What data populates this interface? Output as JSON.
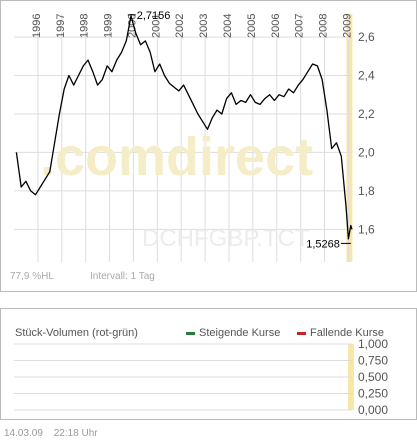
{
  "chart_data": [
    {
      "type": "line",
      "title": "",
      "watermark": ".comdirect",
      "symbol_watermark": "DCHFGBP.TCT",
      "x_labels": [
        "1996",
        "1997",
        "1998",
        "1999",
        "2000",
        "2001",
        "2002",
        "2003",
        "2004",
        "2005",
        "2006",
        "2007",
        "2008",
        "2009"
      ],
      "ylim": [
        1.43,
        2.72
      ],
      "yticks": [
        "2,6",
        "2,4",
        "2,2",
        "2,0",
        "1,8",
        "1,6"
      ],
      "ytick_values": [
        2.6,
        2.4,
        2.2,
        2.0,
        1.8,
        1.6
      ],
      "max_label": "2,7156",
      "max_value": 2.7156,
      "max_year": 1999.93,
      "min_label": "1,5268",
      "min_value": 1.5268,
      "min_year": 2009.02,
      "grid": true,
      "series": [
        {
          "color": "#000000",
          "x": [
            1995.1,
            1995.3,
            1995.5,
            1995.7,
            1995.9,
            1996.1,
            1996.3,
            1996.5,
            1996.7,
            1996.9,
            1997.1,
            1997.3,
            1997.5,
            1997.7,
            1997.9,
            1998.1,
            1998.3,
            1998.5,
            1998.7,
            1998.9,
            1999.1,
            1999.3,
            1999.5,
            1999.7,
            1999.9,
            2000.1,
            2000.3,
            2000.5,
            2000.7,
            2000.9,
            2001.1,
            2001.3,
            2001.5,
            2001.7,
            2001.9,
            2002.1,
            2002.3,
            2002.5,
            2002.7,
            2002.9,
            2003.1,
            2003.3,
            2003.5,
            2003.7,
            2003.9,
            2004.1,
            2004.3,
            2004.5,
            2004.7,
            2004.9,
            2005.1,
            2005.3,
            2005.5,
            2005.7,
            2005.9,
            2006.1,
            2006.3,
            2006.5,
            2006.7,
            2006.9,
            2007.1,
            2007.3,
            2007.5,
            2007.7,
            2007.9,
            2008.1,
            2008.3,
            2008.5,
            2008.7,
            2008.9,
            2009.0,
            2009.1,
            2009.15
          ],
          "values": [
            2.0,
            1.82,
            1.85,
            1.8,
            1.78,
            1.82,
            1.86,
            1.9,
            2.05,
            2.2,
            2.33,
            2.4,
            2.35,
            2.4,
            2.45,
            2.48,
            2.42,
            2.35,
            2.38,
            2.45,
            2.42,
            2.48,
            2.52,
            2.58,
            2.71,
            2.62,
            2.56,
            2.58,
            2.52,
            2.42,
            2.46,
            2.4,
            2.36,
            2.34,
            2.32,
            2.35,
            2.3,
            2.25,
            2.2,
            2.16,
            2.12,
            2.18,
            2.22,
            2.2,
            2.28,
            2.31,
            2.25,
            2.27,
            2.26,
            2.3,
            2.26,
            2.25,
            2.28,
            2.3,
            2.27,
            2.3,
            2.29,
            2.33,
            2.31,
            2.35,
            2.38,
            2.42,
            2.46,
            2.45,
            2.38,
            2.22,
            2.02,
            2.05,
            1.98,
            1.72,
            1.55,
            1.62,
            1.6
          ]
        }
      ],
      "volume_label": "77,9 %HL",
      "interval_label": "Intervall: 1 Tag"
    },
    {
      "type": "bar",
      "title": "Stück-Volumen (rot-grün)",
      "legend": [
        {
          "name": "Steigende Kurse",
          "color": "#2a7a3a"
        },
        {
          "name": "Fallende Kurse",
          "color": "#cc2222"
        }
      ],
      "legend_placement": "top-right",
      "yticks": [
        "1,000",
        "0,750",
        "0,500",
        "0,250",
        "0,000"
      ],
      "ytick_values": [
        1.0,
        0.75,
        0.5,
        0.25,
        0.0
      ],
      "ylim": [
        0,
        1.0
      ],
      "series": []
    }
  ],
  "footer": {
    "date": "14.03.09",
    "time": "22:18 Uhr"
  },
  "colors": {
    "highlight": "#f8e8a8",
    "grid": "#dddddd",
    "border": "#bbbbbb",
    "line": "#000000",
    "watermark": "#e8e8e8"
  }
}
